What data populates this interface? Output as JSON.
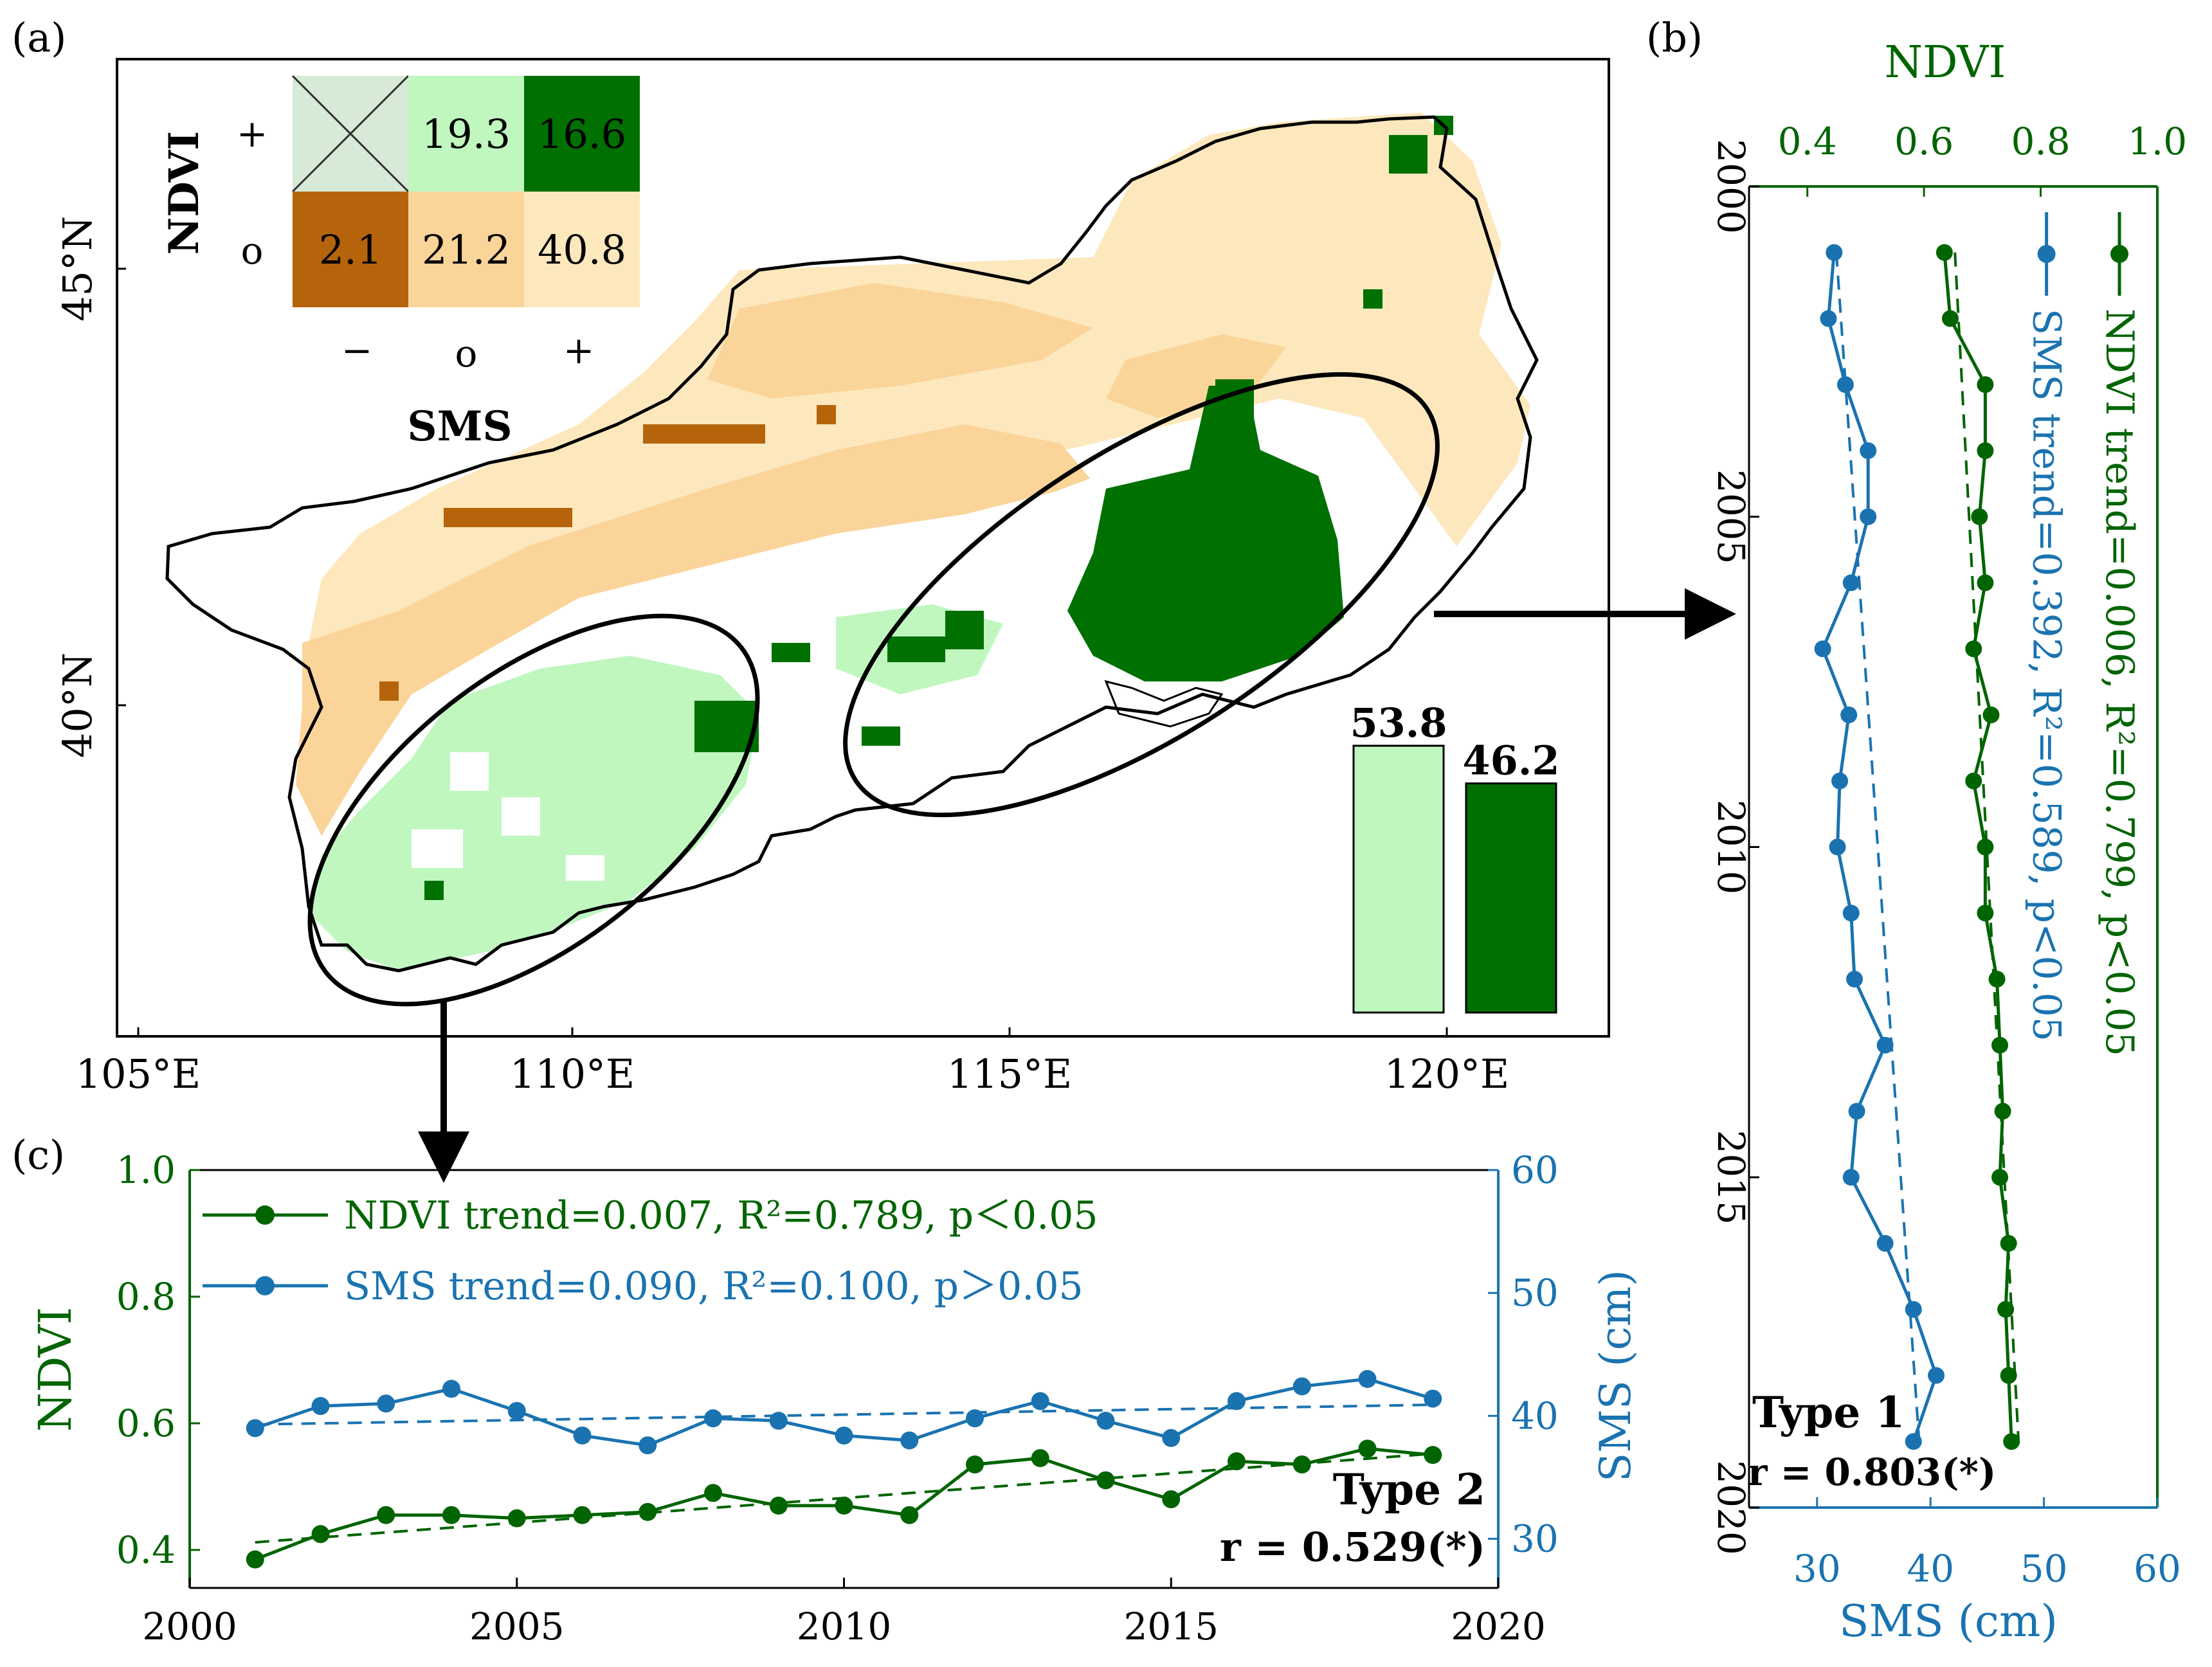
{
  "colors": {
    "ndvi_green": "#006400",
    "sms_blue": "#1a73b0",
    "light_green": "#bff7bf",
    "dark_green": "#007000",
    "brown": "#b5640c",
    "light_orange": "#fbd49a",
    "pale_yellow": "#fde8bd",
    "pale_green_gray": "#d7ead7"
  },
  "panels": {
    "a": "(a)",
    "b": "(b)",
    "c": "(c)"
  },
  "map": {
    "x_ticks": [
      "105°E",
      "110°E",
      "115°E",
      "120°E"
    ],
    "y_ticks": [
      "45°N",
      "40°N"
    ],
    "legend": {
      "ndvi_label": "NDVI",
      "sms_label": "SMS",
      "row_signs": [
        "+",
        "o"
      ],
      "col_signs": [
        "−",
        "o",
        "+"
      ],
      "cells": {
        "plus_minus": "",
        "plus_zero": "19.3",
        "plus_plus": "16.6",
        "zero_minus": "2.1",
        "zero_zero": "21.2",
        "zero_plus": "40.8"
      }
    },
    "inset_bars": {
      "light_value": "53.8",
      "dark_value": "46.2",
      "light": 53.8,
      "dark": 46.2
    }
  },
  "chart_data": [
    {
      "id": "b",
      "type": "line",
      "orientation": "vertical",
      "title": "",
      "type_label": "Type 1",
      "r_label": "r = 0.803(*)",
      "ndvi_axis_label": "NDVI",
      "sms_axis_label": "SMS (cm)",
      "ndvi_ticks": [
        "0.4",
        "0.6",
        "0.8",
        "1.0"
      ],
      "sms_ticks": [
        "30",
        "40",
        "50",
        "60"
      ],
      "year_ticks": [
        "2000",
        "2005",
        "2010",
        "2015",
        "2020"
      ],
      "ndvi_range": [
        0.3,
        1.0
      ],
      "sms_range": [
        24,
        60
      ],
      "year_range": [
        2000,
        2020
      ],
      "years": [
        2001,
        2002,
        2003,
        2004,
        2005,
        2006,
        2007,
        2008,
        2009,
        2010,
        2011,
        2012,
        2013,
        2014,
        2015,
        2016,
        2017,
        2018,
        2019
      ],
      "series": [
        {
          "name": "SMS",
          "label": "SMS trend=0.392, R²=0.589, p<0.05",
          "axis": "sms",
          "color": "#1a73b0",
          "values": [
            31.5,
            31.0,
            32.5,
            34.5,
            34.5,
            33.0,
            30.5,
            32.8,
            32.0,
            31.8,
            33.0,
            33.3,
            36.0,
            33.5,
            33.0,
            36.0,
            38.5,
            40.5,
            38.5
          ],
          "trend": [
            31.7,
            39.0
          ]
        },
        {
          "name": "NDVI",
          "label": "NDVI trend=0.006, R²=0.799, p<0.05",
          "axis": "ndvi",
          "color": "#006400",
          "values": [
            0.635,
            0.645,
            0.705,
            0.705,
            0.695,
            0.705,
            0.685,
            0.715,
            0.685,
            0.705,
            0.705,
            0.725,
            0.73,
            0.735,
            0.73,
            0.745,
            0.74,
            0.745,
            0.75
          ],
          "trend": [
            0.653,
            0.762
          ]
        }
      ],
      "legend": [
        {
          "label": "NDVI trend=0.006, R²=0.799, p<0.05",
          "marker_value": 0.935
        },
        {
          "label": "SMS trend=0.392, R²=0.589, p<0.05",
          "marker_value": 0.81
        }
      ]
    },
    {
      "id": "c",
      "type": "line",
      "title": "",
      "type_label": "Type 2",
      "r_label": "r = 0.529(*)",
      "xlabel": "",
      "ylabel": "NDVI",
      "y2label": "SMS (cm)",
      "x_ticks": [
        "2000",
        "2005",
        "2010",
        "2015",
        "2020"
      ],
      "y_ticks": [
        "0.4",
        "0.6",
        "0.8",
        "1.0"
      ],
      "y2_ticks": [
        "30",
        "40",
        "50",
        "60"
      ],
      "xlim": [
        2000,
        2020
      ],
      "ylim": [
        0.34,
        1.0
      ],
      "y2lim": [
        26,
        60
      ],
      "x": [
        2001,
        2002,
        2003,
        2004,
        2005,
        2006,
        2007,
        2008,
        2009,
        2010,
        2011,
        2012,
        2013,
        2014,
        2015,
        2016,
        2017,
        2018,
        2019
      ],
      "series": [
        {
          "name": "NDVI",
          "label": "NDVI trend=0.007, R²=0.789, p＜0.05",
          "axis": "ndvi",
          "color": "#006400",
          "values": [
            0.385,
            0.425,
            0.455,
            0.455,
            0.45,
            0.455,
            0.46,
            0.49,
            0.47,
            0.47,
            0.455,
            0.535,
            0.545,
            0.51,
            0.48,
            0.54,
            0.535,
            0.56,
            0.55
          ],
          "trend": [
            0.412,
            0.552
          ]
        },
        {
          "name": "SMS",
          "label": "SMS trend=0.090, R²=0.100, p＞0.05",
          "axis": "sms",
          "color": "#1a73b0",
          "values": [
            39.0,
            40.8,
            41.0,
            42.2,
            40.4,
            38.4,
            37.6,
            39.8,
            39.6,
            38.4,
            38.0,
            39.8,
            41.2,
            39.6,
            38.2,
            41.2,
            42.4,
            43.0,
            41.4
          ],
          "trend": [
            39.3,
            40.9
          ]
        }
      ]
    }
  ]
}
